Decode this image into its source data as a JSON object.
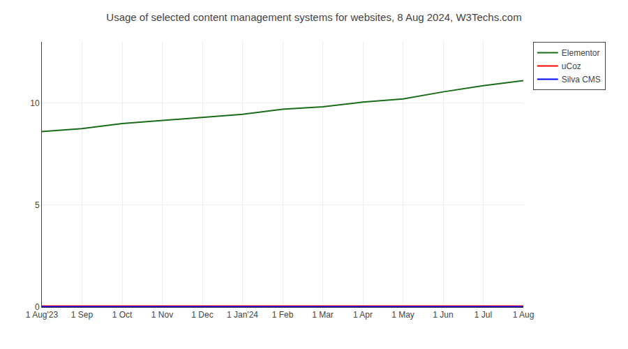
{
  "chart_data": {
    "type": "line",
    "title": "Usage of selected content management systems for websites, 8 Aug 2024, W3Techs.com",
    "categories": [
      "1 Aug'23",
      "1 Sep",
      "1 Oct",
      "1 Nov",
      "1 Dec",
      "1 Jan'24",
      "1 Feb",
      "1 Mar",
      "1 Apr",
      "1 May",
      "1 Jun",
      "1 Jul",
      "1 Aug"
    ],
    "series": [
      {
        "name": "Elementor",
        "color": "#1a6b1a",
        "values": [
          8.6,
          8.75,
          9.0,
          9.15,
          9.3,
          9.45,
          9.7,
          9.82,
          10.05,
          10.2,
          10.55,
          10.85,
          11.1
        ]
      },
      {
        "name": "uCoz",
        "color": "#ff0000",
        "values": [
          0.05,
          0.05,
          0.05,
          0.05,
          0.05,
          0.05,
          0.05,
          0.05,
          0.05,
          0.05,
          0.05,
          0.05,
          0.05
        ]
      },
      {
        "name": "Silva CMS",
        "color": "#0000ff",
        "values": [
          0.02,
          0.02,
          0.02,
          0.02,
          0.02,
          0.02,
          0.02,
          0.02,
          0.02,
          0.02,
          0.02,
          0.02,
          0.02
        ]
      }
    ],
    "ylim": [
      0,
      13
    ],
    "yticks": [
      0,
      5,
      10
    ],
    "grid": true,
    "legend": "upper right"
  }
}
